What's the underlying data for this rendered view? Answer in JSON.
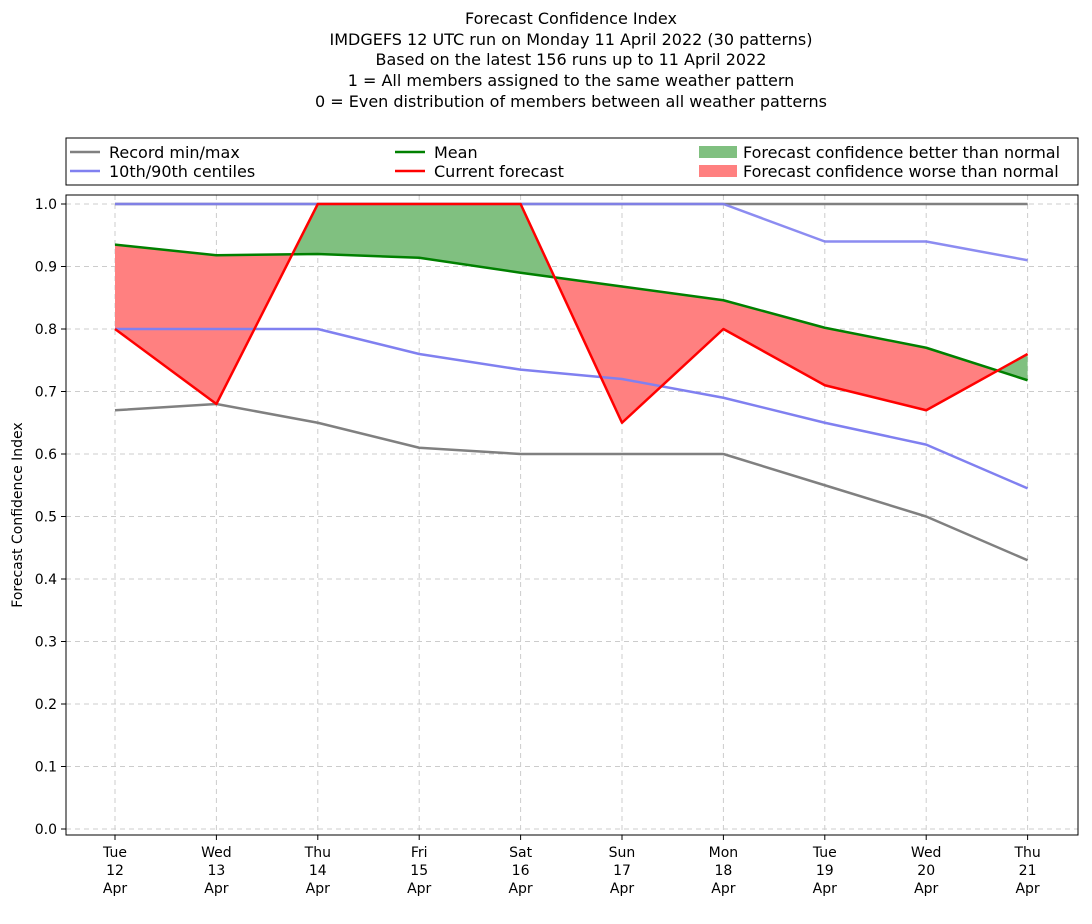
{
  "chart_data": {
    "type": "line",
    "title_lines": [
      "Forecast Confidence Index",
      "IMDGEFS 12 UTC run on Monday 11 April 2022 (30 patterns)",
      "Based on the latest 156 runs up to 11 April 2022",
      "1 = All members assigned to the same weather pattern",
      "0 = Even distribution of members between all weather patterns"
    ],
    "ylabel": "Forecast Confidence Index",
    "ylim": [
      0.0,
      1.0
    ],
    "yticks": [
      "0.0",
      "0.1",
      "0.2",
      "0.3",
      "0.4",
      "0.5",
      "0.6",
      "0.7",
      "0.8",
      "0.9",
      "1.0"
    ],
    "grid": true,
    "legend_position": "top",
    "categories": [
      [
        "Tue",
        "12",
        "Apr"
      ],
      [
        "Wed",
        "13",
        "Apr"
      ],
      [
        "Thu",
        "14",
        "Apr"
      ],
      [
        "Fri",
        "15",
        "Apr"
      ],
      [
        "Sat",
        "16",
        "Apr"
      ],
      [
        "Sun",
        "17",
        "Apr"
      ],
      [
        "Mon",
        "18",
        "Apr"
      ],
      [
        "Tue",
        "19",
        "Apr"
      ],
      [
        "Wed",
        "20",
        "Apr"
      ],
      [
        "Thu",
        "21",
        "Apr"
      ]
    ],
    "legend": [
      {
        "key": "record",
        "label": "Record min/max",
        "kind": "line",
        "color": "#808080"
      },
      {
        "key": "centiles",
        "label": "10th/90th centiles",
        "kind": "line",
        "color": "#8080f0"
      },
      {
        "key": "mean",
        "label": "Mean",
        "kind": "line",
        "color": "#008000"
      },
      {
        "key": "current",
        "label": "Current forecast",
        "kind": "line",
        "color": "#ff0000"
      },
      {
        "key": "better",
        "label": "Forecast confidence better than normal",
        "kind": "patch",
        "color": "#80c080"
      },
      {
        "key": "worse",
        "label": "Forecast confidence worse than normal",
        "kind": "patch",
        "color": "#ff8080"
      }
    ],
    "series": [
      {
        "key": "record_max",
        "color": "#808080",
        "values": [
          1.0,
          1.0,
          1.0,
          1.0,
          1.0,
          1.0,
          1.0,
          1.0,
          1.0,
          1.0
        ]
      },
      {
        "key": "record_min",
        "color": "#808080",
        "values": [
          0.67,
          0.68,
          0.65,
          0.61,
          0.6,
          0.6,
          0.6,
          0.55,
          0.5,
          0.43
        ]
      },
      {
        "key": "p90",
        "color": "#8080f0",
        "values": [
          1.0,
          1.0,
          1.0,
          1.0,
          1.0,
          1.0,
          1.0,
          0.94,
          0.94,
          0.91
        ]
      },
      {
        "key": "p10",
        "color": "#8080f0",
        "values": [
          0.8,
          0.8,
          0.8,
          0.76,
          0.735,
          0.72,
          0.69,
          0.65,
          0.615,
          0.545
        ]
      },
      {
        "key": "mean",
        "color": "#008000",
        "values": [
          0.935,
          0.918,
          0.92,
          0.914,
          0.89,
          0.868,
          0.846,
          0.802,
          0.77,
          0.718
        ]
      },
      {
        "key": "current",
        "color": "#ff0000",
        "values": [
          0.8,
          0.68,
          1.0,
          1.0,
          1.0,
          0.65,
          0.8,
          0.71,
          0.67,
          0.76
        ]
      }
    ],
    "fill_colors": {
      "better": "#80c080",
      "worse": "#ff8080"
    }
  }
}
